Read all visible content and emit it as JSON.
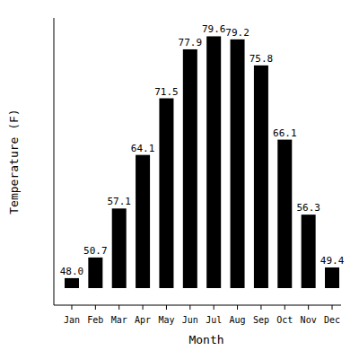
{
  "chart_data": {
    "type": "bar",
    "x_label": "Month",
    "y_label": "Temperature (F)",
    "categories": [
      "Jan",
      "Feb",
      "Mar",
      "Apr",
      "May",
      "Jun",
      "Jul",
      "Aug",
      "Sep",
      "Oct",
      "Nov",
      "Dec"
    ],
    "values": [
      48.0,
      50.7,
      57.1,
      64.1,
      71.5,
      77.9,
      79.6,
      79.2,
      75.8,
      66.1,
      56.3,
      49.4
    ],
    "value_labels": [
      "48.0",
      "50.7",
      "57.1",
      "64.1",
      "71.5",
      "77.9",
      "79.6",
      "79.2",
      "75.8",
      "66.1",
      "56.3",
      "49.4"
    ],
    "color": "#000000",
    "ylim": [
      46.7,
      82
    ],
    "yticks": [],
    "data_labels": true,
    "tick_labels": "x",
    "grid": false
  }
}
